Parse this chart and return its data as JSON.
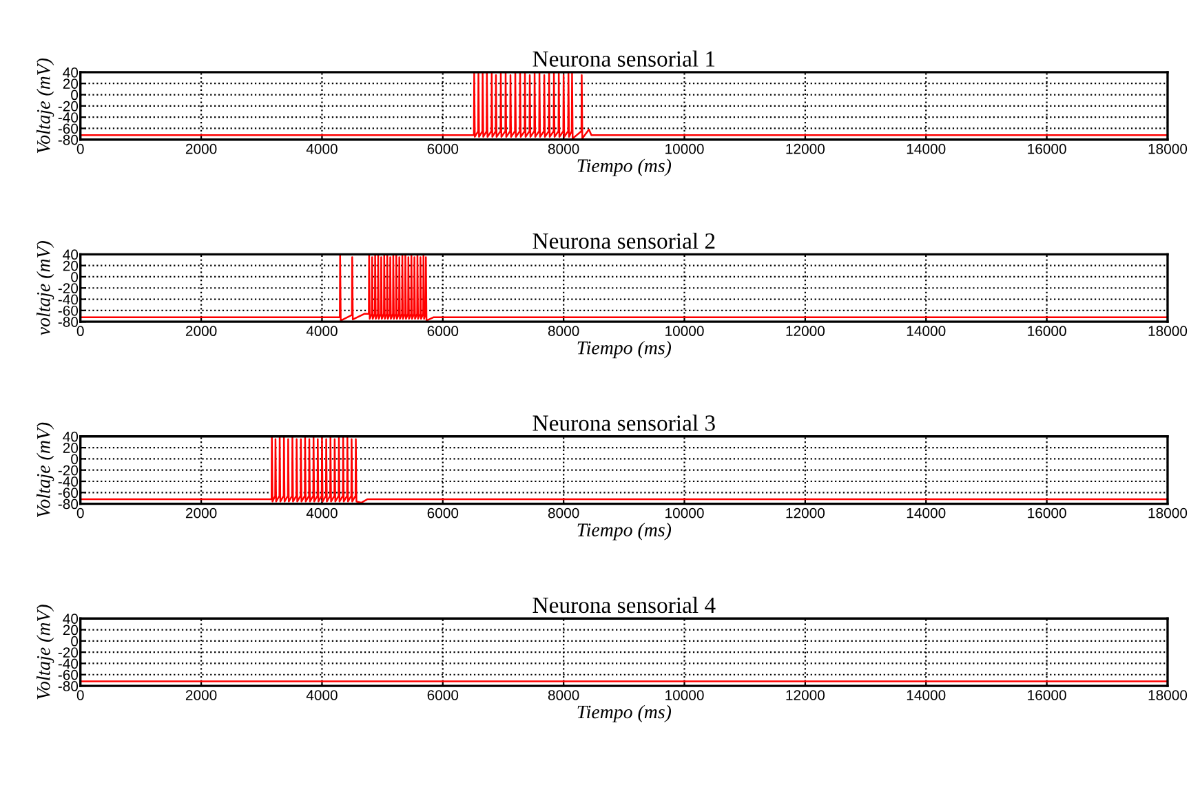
{
  "chart_data": [
    {
      "type": "line",
      "title": "Neurona sensorial 1",
      "xlabel": "Tiempo (ms)",
      "ylabel": "Voltaje (mV)",
      "xlim": [
        0,
        18000
      ],
      "ylim": [
        -80,
        40
      ],
      "xticks": [
        0,
        2000,
        4000,
        6000,
        8000,
        10000,
        12000,
        14000,
        16000,
        18000
      ],
      "yticks": [
        -80,
        -60,
        -40,
        -20,
        0,
        20,
        40
      ],
      "grid": true,
      "series": [
        {
          "color": "#ff0000",
          "x": [
            0,
            6515,
            6520,
            6530,
            6585,
            6590,
            6600,
            6655,
            6660,
            6670,
            6725,
            6730,
            6740,
            6805,
            6810,
            6820,
            6875,
            6880,
            6890,
            6955,
            6960,
            6970,
            7035,
            7040,
            7050,
            7115,
            7120,
            7130,
            7195,
            7200,
            7210,
            7275,
            7280,
            7290,
            7355,
            7360,
            7370,
            7435,
            7440,
            7450,
            7515,
            7520,
            7530,
            7595,
            7600,
            7610,
            7675,
            7680,
            7690,
            7755,
            7760,
            7770,
            7835,
            7840,
            7850,
            7915,
            7920,
            7930,
            7995,
            8000,
            8010,
            8075,
            8080,
            8090,
            8135,
            8140,
            8150,
            8295,
            8300,
            8310,
            8420,
            8460,
            18000
          ],
          "values": [
            -72,
            -72,
            40,
            -75,
            -65,
            40,
            -75,
            -65,
            40,
            -75,
            -65,
            40,
            -75,
            -65,
            40,
            -75,
            -65,
            35,
            -75,
            -65,
            40,
            -75,
            -65,
            40,
            -75,
            -65,
            35,
            -75,
            -65,
            40,
            -75,
            -65,
            40,
            -75,
            -65,
            40,
            -75,
            -65,
            35,
            -75,
            -65,
            40,
            -75,
            -65,
            40,
            -75,
            -65,
            35,
            -75,
            -65,
            40,
            -75,
            -65,
            40,
            -75,
            -65,
            40,
            -75,
            -65,
            35,
            -75,
            -65,
            40,
            -75,
            -65,
            40,
            -78,
            -65,
            35,
            -78,
            -62,
            -72,
            -72
          ]
        }
      ]
    },
    {
      "type": "line",
      "title": "Neurona sensorial 2",
      "xlabel": "Tiempo (ms)",
      "ylabel": "voltaje (mV)",
      "xlim": [
        0,
        18000
      ],
      "ylim": [
        -80,
        40
      ],
      "xticks": [
        0,
        2000,
        4000,
        6000,
        8000,
        10000,
        12000,
        14000,
        16000,
        18000
      ],
      "yticks": [
        -80,
        -60,
        -40,
        -20,
        0,
        20,
        40
      ],
      "grid": true,
      "series": [
        {
          "color": "#ff0000",
          "x": [
            0,
            4295,
            4300,
            4310,
            4495,
            4500,
            4510,
            4700,
            4775,
            4780,
            4790,
            4825,
            4830,
            4840,
            4875,
            4880,
            4890,
            4925,
            4930,
            4940,
            4975,
            4980,
            4990,
            5025,
            5030,
            5040,
            5075,
            5080,
            5090,
            5125,
            5130,
            5140,
            5175,
            5180,
            5190,
            5225,
            5230,
            5240,
            5275,
            5280,
            5290,
            5325,
            5330,
            5340,
            5375,
            5380,
            5390,
            5425,
            5430,
            5440,
            5475,
            5480,
            5490,
            5525,
            5530,
            5540,
            5575,
            5580,
            5590,
            5625,
            5630,
            5640,
            5675,
            5680,
            5690,
            5715,
            5720,
            5730,
            5850,
            18000
          ],
          "values": [
            -72,
            -72,
            40,
            -78,
            -68,
            35,
            -76,
            -66,
            -66,
            40,
            -75,
            -66,
            35,
            -75,
            -66,
            40,
            -75,
            -66,
            40,
            -75,
            -66,
            35,
            -75,
            -66,
            40,
            -75,
            -66,
            40,
            -75,
            -66,
            35,
            -75,
            -66,
            40,
            -75,
            -66,
            40,
            -75,
            -66,
            35,
            -75,
            -66,
            40,
            -75,
            -66,
            40,
            -75,
            -66,
            35,
            -75,
            -66,
            40,
            -75,
            -66,
            35,
            -75,
            -66,
            40,
            -75,
            -66,
            35,
            -75,
            -66,
            40,
            -75,
            -66,
            35,
            -78,
            -72,
            -72
          ]
        }
      ]
    },
    {
      "type": "line",
      "title": "Neurona sensorial 3",
      "xlabel": "Tiempo (ms)",
      "ylabel": "Voltaje (mV)",
      "xlim": [
        0,
        18000
      ],
      "ylim": [
        -80,
        40
      ],
      "xticks": [
        0,
        2000,
        4000,
        6000,
        8000,
        10000,
        12000,
        14000,
        16000,
        18000
      ],
      "yticks": [
        -80,
        -60,
        -40,
        -20,
        0,
        20,
        40
      ],
      "grid": true,
      "series": [
        {
          "color": "#ff0000",
          "x": [
            0,
            3165,
            3170,
            3180,
            3225,
            3230,
            3240,
            3295,
            3300,
            3310,
            3365,
            3370,
            3380,
            3435,
            3440,
            3450,
            3505,
            3510,
            3520,
            3575,
            3580,
            3590,
            3645,
            3650,
            3660,
            3715,
            3720,
            3730,
            3785,
            3790,
            3800,
            3855,
            3860,
            3870,
            3925,
            3930,
            3940,
            3995,
            4000,
            4010,
            4065,
            4070,
            4080,
            4135,
            4140,
            4150,
            4205,
            4210,
            4220,
            4275,
            4280,
            4290,
            4345,
            4350,
            4360,
            4415,
            4420,
            4430,
            4485,
            4490,
            4500,
            4555,
            4560,
            4570,
            4650,
            4750,
            18000
          ],
          "values": [
            -72,
            -72,
            40,
            -76,
            -66,
            35,
            -76,
            -66,
            40,
            -76,
            -66,
            40,
            -76,
            -66,
            35,
            -76,
            -66,
            40,
            -76,
            -66,
            35,
            -76,
            -66,
            35,
            -76,
            -66,
            40,
            -76,
            -66,
            35,
            -76,
            -66,
            40,
            -76,
            -66,
            35,
            -76,
            -66,
            40,
            -76,
            -66,
            35,
            -76,
            -66,
            40,
            -76,
            -66,
            35,
            -76,
            -66,
            40,
            -76,
            -66,
            40,
            -76,
            -66,
            40,
            -76,
            -66,
            35,
            -76,
            -66,
            35,
            -76,
            -78,
            -72,
            -72
          ]
        }
      ]
    },
    {
      "type": "line",
      "title": "Neurona sensorial 4",
      "xlabel": "Tiempo (ms)",
      "ylabel": "Voltaje (mV)",
      "xlim": [
        0,
        18000
      ],
      "ylim": [
        -80,
        40
      ],
      "xticks": [
        0,
        2000,
        4000,
        6000,
        8000,
        10000,
        12000,
        14000,
        16000,
        18000
      ],
      "yticks": [
        -80,
        -60,
        -40,
        -20,
        0,
        20,
        40
      ],
      "grid": true,
      "series": [
        {
          "color": "#ff0000",
          "x": [
            0,
            18000
          ],
          "values": [
            -72,
            -72
          ]
        }
      ]
    }
  ]
}
